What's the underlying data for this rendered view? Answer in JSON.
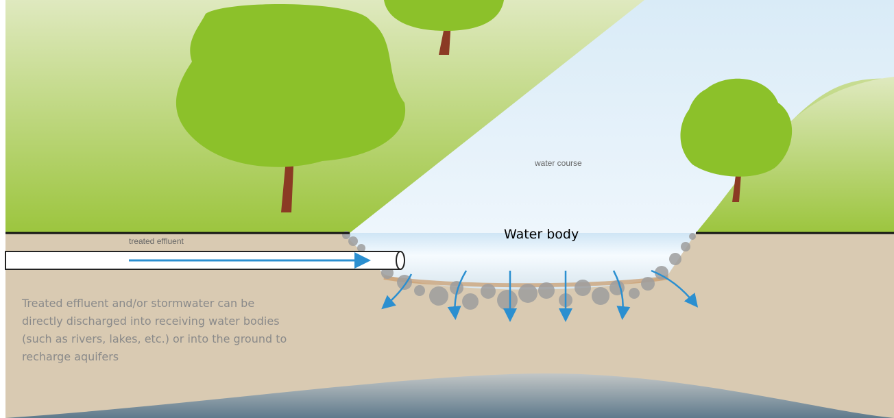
{
  "labels": {
    "water_course": "water course",
    "water_body": "Water body",
    "treated_effluent": "treated effluent"
  },
  "description": {
    "lines": [
      "Treated effluent and/or stormwater can be",
      "directly discharged into receiving water bodies",
      "(such as rivers, lakes, etc.) or into the ground to",
      "recharge aquifers"
    ]
  }
}
